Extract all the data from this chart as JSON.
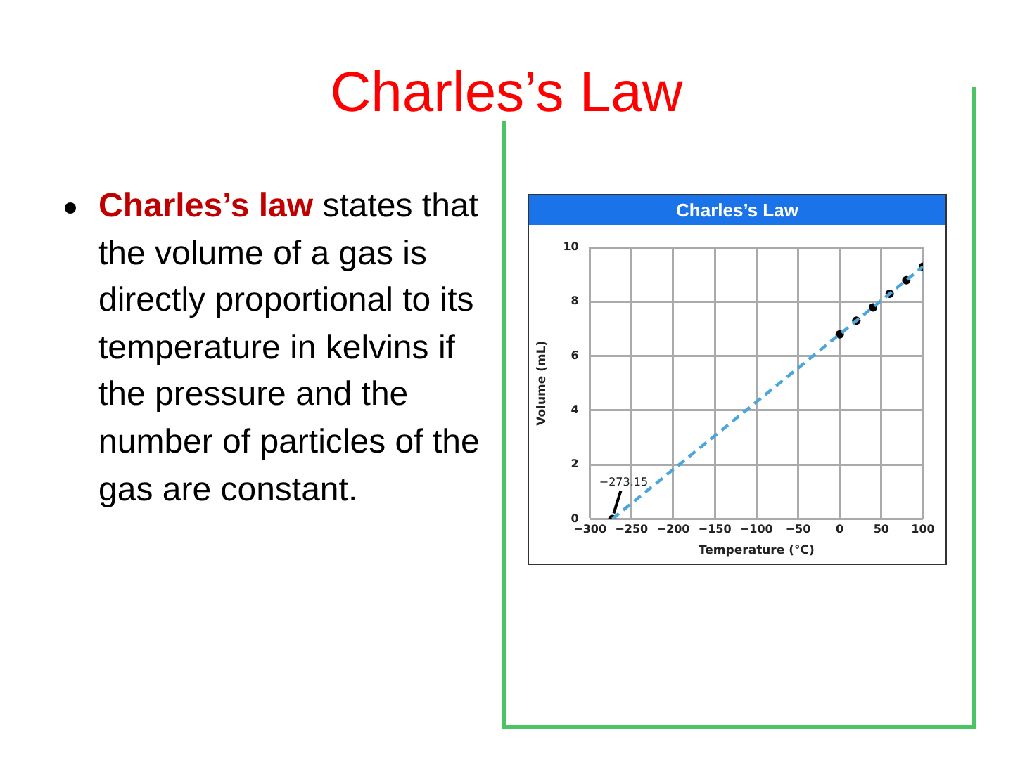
{
  "chart_data": {
    "type": "scatter",
    "title": "Charles’s Law",
    "xlabel": "Temperature (°C)",
    "ylabel": "Volume (mL)",
    "series": [
      {
        "type": "line",
        "color": "#4ba6dc",
        "line_style": "dashed",
        "marker": "none",
        "x": [
          -273.15,
          100
        ],
        "values": [
          0,
          9.29
        ]
      },
      {
        "type": "scatter",
        "color": "#000000",
        "marker": "circle",
        "x": [
          -273.15,
          0,
          20,
          40,
          60,
          80,
          100
        ],
        "values": [
          0,
          6.8,
          7.3,
          7.79,
          8.29,
          8.79,
          9.29
        ]
      }
    ],
    "xlim": [
      -300,
      100
    ],
    "xticks": [
      -300,
      -250,
      -200,
      -150,
      -100,
      -50,
      0,
      50,
      100
    ],
    "ylim": [
      0,
      10
    ],
    "yticks": [
      0,
      2,
      4,
      6,
      8,
      10
    ],
    "grid": true,
    "legend": false,
    "annotations": [
      "Charles’s Law",
      {
        "text": "−273.15",
        "x": -273.15,
        "y": 0
      },
      "Charles’s law",
      "states that the volume of a gas is directly proportional to its temperature in kelvins if the pressure and the number of particles of the gas are constant."
    ]
  }
}
